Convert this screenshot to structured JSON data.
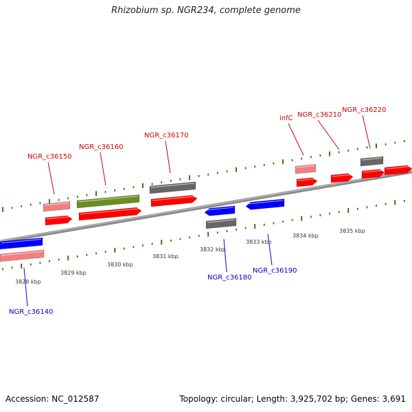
{
  "title": "Rhizobium sp. NGR234, complete genome",
  "footer": {
    "accession": "Accession: NC_012587",
    "info": "Topology: circular; Length: 3,925,702 bp; Genes: 3,691"
  },
  "colors": {
    "backbone": "#8a8a8a",
    "tick": "#2f7a12",
    "cds": "#ff0000",
    "cds_light": "#f08080",
    "cds_blue": "#0000ff",
    "cds_green": "#6b8e23",
    "cds_gray": "#666666",
    "label_red": "#cc0000",
    "label_blue": "#0000cc"
  },
  "ruler": {
    "labels": [
      "3828 kbp",
      "3829 kbp",
      "3830 kbp",
      "3831 kbp",
      "3832 kbp",
      "3833 kbp",
      "3834 kbp",
      "3835 kbp"
    ]
  },
  "genes": [
    {
      "name": "NGR_c36140",
      "color": "label_blue"
    },
    {
      "name": "NGR_c36150",
      "color": "label_red"
    },
    {
      "name": "NGR_c36160",
      "color": "label_red"
    },
    {
      "name": "NGR_c36170",
      "color": "label_red"
    },
    {
      "name": "NGR_c36180",
      "color": "label_blue"
    },
    {
      "name": "NGR_c36190",
      "color": "label_blue"
    },
    {
      "name": "infC",
      "color": "label_red"
    },
    {
      "name": "NGR_c36210",
      "color": "label_red"
    },
    {
      "name": "NGR_c36220",
      "color": "label_red"
    }
  ]
}
